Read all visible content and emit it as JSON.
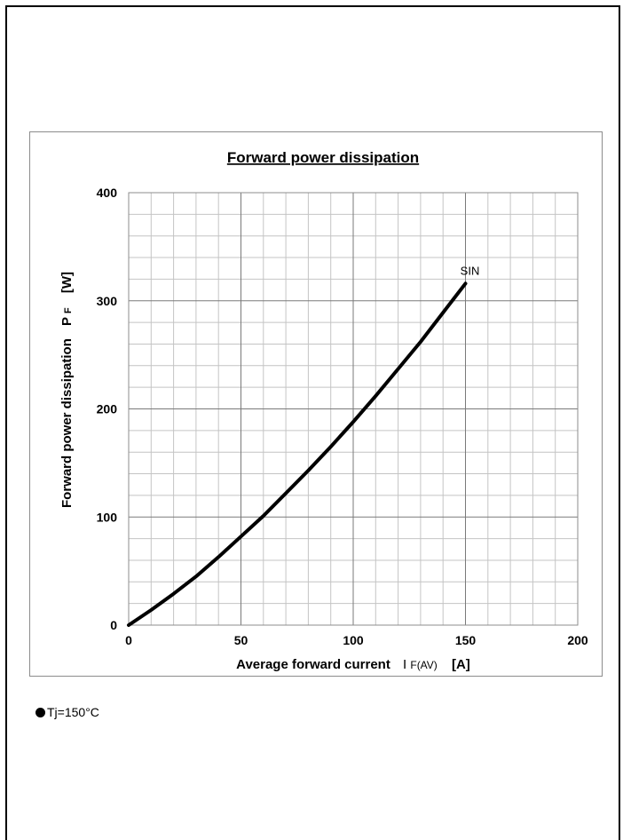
{
  "chart_data": {
    "type": "line",
    "title": "Forward power dissipation",
    "xlabel": {
      "main": "Average forward current",
      "symbol": "I",
      "subscript": "F(AV)",
      "unit": "[A]"
    },
    "ylabel": {
      "main": "Forward power dissipation",
      "symbol": "P",
      "subscript": "F",
      "unit": "[W]"
    },
    "xlim": [
      0,
      200
    ],
    "ylim": [
      0,
      400
    ],
    "x_ticks": [
      "0",
      "50",
      "100",
      "150",
      "200"
    ],
    "y_ticks": [
      "0",
      "100",
      "200",
      "300",
      "400"
    ],
    "grid": true,
    "series": [
      {
        "name": "SIN",
        "x": [
          0,
          10,
          20,
          30,
          40,
          50,
          60,
          70,
          80,
          90,
          100,
          110,
          120,
          130,
          140,
          150
        ],
        "y": [
          0,
          14,
          29,
          45,
          63,
          82,
          101,
          122,
          143,
          165,
          188,
          212,
          237,
          262,
          289,
          316
        ]
      }
    ]
  },
  "note": {
    "text": "Tj=150°C"
  }
}
